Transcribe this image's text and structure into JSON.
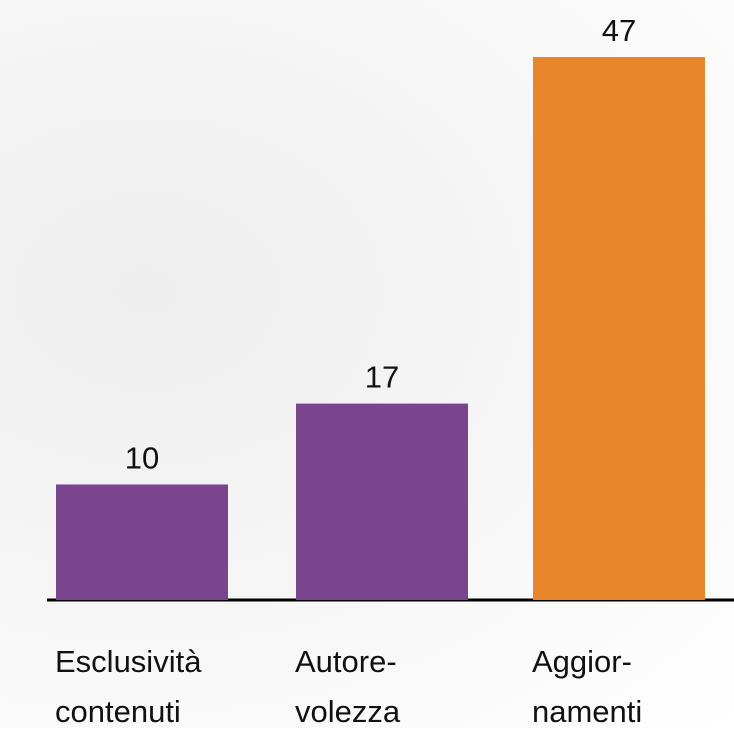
{
  "chart_data": {
    "type": "bar",
    "categories": [
      "Esclusività\ncontenuti",
      "Autore-\nvolezza",
      "Aggior-\nnamenti"
    ],
    "values": [
      10,
      17,
      47
    ],
    "colors": [
      "#7b448e",
      "#7b448e",
      "#e8862c"
    ],
    "ylim": [
      0,
      47
    ]
  }
}
